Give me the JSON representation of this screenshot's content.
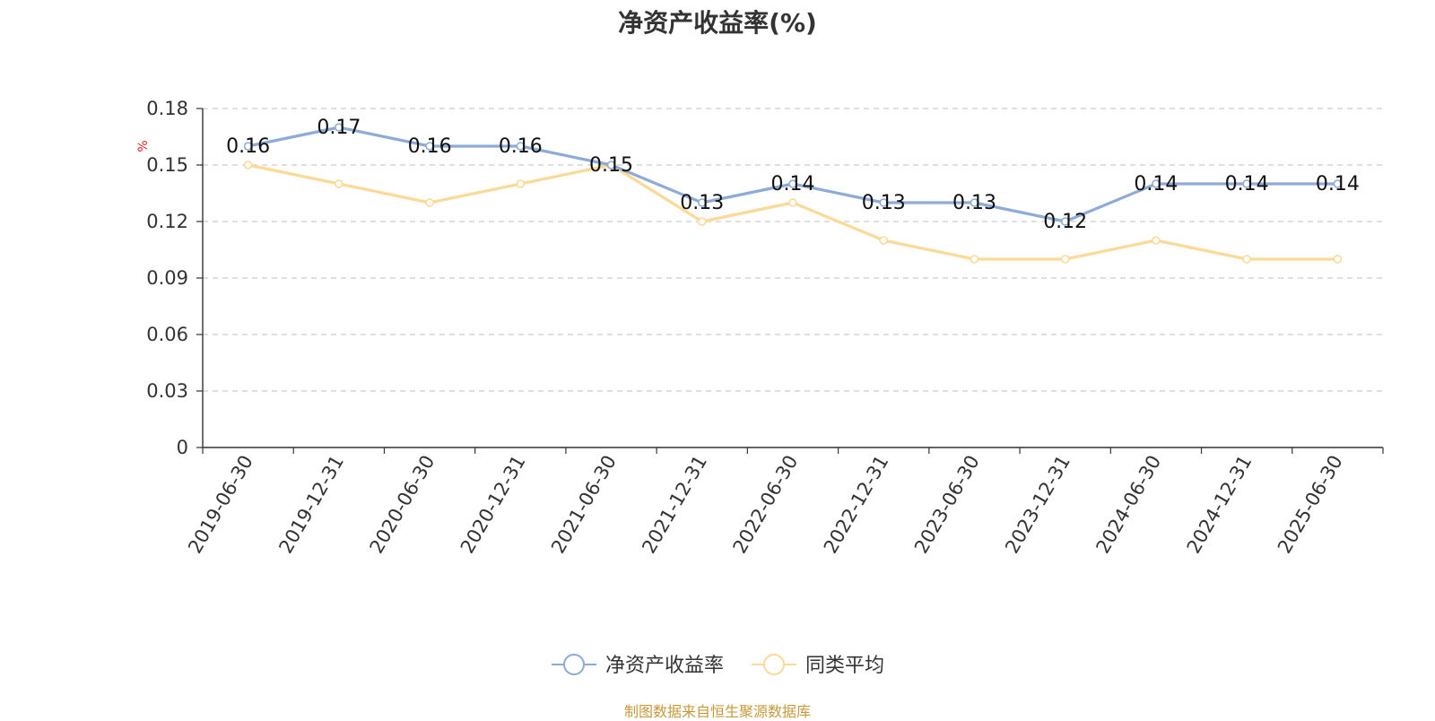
{
  "chart_data": {
    "type": "line",
    "title": "净资产收益率(%)",
    "ylabel": "%",
    "ylim": [
      0,
      0.18
    ],
    "yticks": [
      "0",
      "0.03",
      "0.06",
      "0.09",
      "0.12",
      "0.15",
      "0.18"
    ],
    "grid": "horizontal dashed",
    "legend_position": "bottom-center",
    "categories": [
      "2019-06-30",
      "2019-12-31",
      "2020-06-30",
      "2020-12-31",
      "2021-06-30",
      "2021-12-31",
      "2022-06-30",
      "2022-12-31",
      "2023-06-30",
      "2023-12-31",
      "2024-06-30",
      "2024-12-31",
      "2025-06-30"
    ],
    "series": [
      {
        "name": "净资产收益率",
        "color": "#8eaad6",
        "values": [
          0.16,
          0.17,
          0.16,
          0.16,
          0.15,
          0.13,
          0.14,
          0.13,
          0.13,
          0.12,
          0.14,
          0.14,
          0.14
        ],
        "labels": [
          "0.16",
          "0.17",
          "0.16",
          "0.16",
          "0.15",
          "0.13",
          "0.14",
          "0.13",
          "0.13",
          "0.12",
          "0.14",
          "0.14",
          "0.14"
        ]
      },
      {
        "name": "同类平均",
        "color": "#fbd997",
        "values": [
          0.15,
          0.14,
          0.13,
          0.14,
          0.15,
          0.12,
          0.13,
          0.11,
          0.1,
          0.1,
          0.11,
          0.1,
          0.1
        ]
      }
    ]
  },
  "source_note": "制图数据来自恒生聚源数据库"
}
